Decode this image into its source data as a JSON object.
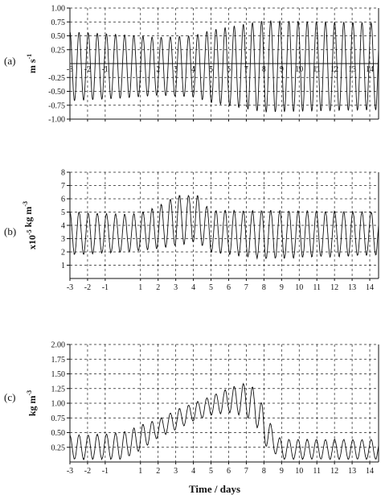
{
  "x_axis_label": "Time / days",
  "chart_data": [
    {
      "type": "line",
      "panel_label": "(a)",
      "ylabel_main": "m s",
      "ylabel_sup": "-1",
      "ylim": [
        -1.0,
        1.0
      ],
      "yticks": [
        -1.0,
        -0.75,
        -0.5,
        -0.25,
        0.25,
        0.5,
        0.75,
        1.0
      ],
      "ytick_labels": [
        "-1.00",
        "-0.75",
        "-0.50",
        "-0.25",
        "0.25",
        "0.50",
        "0.75",
        "1.00"
      ],
      "xlim": [
        -3,
        14.5
      ],
      "xticks": [
        -3,
        -2,
        -1,
        1,
        2,
        3,
        4,
        5,
        6,
        7,
        8,
        9,
        10,
        11,
        12,
        13,
        14
      ],
      "xtick_labels": [
        "-3",
        "-2",
        "-1",
        "1",
        "2",
        "3",
        "4",
        "5",
        "6",
        "7",
        "8",
        "9",
        "10",
        "11",
        "12",
        "13",
        "14"
      ],
      "xtick_labels_on_zero_line": true,
      "zero_line": true,
      "grid": true,
      "series": [
        {
          "period_days": 0.5175,
          "envelope_x": [
            -3,
            0,
            2,
            4,
            5,
            8,
            14.5
          ],
          "envelope_amplitude": [
            0.62,
            0.57,
            0.52,
            0.55,
            0.65,
            0.82,
            0.78
          ],
          "mean": -0.05
        }
      ]
    },
    {
      "type": "line",
      "panel_label": "(b)",
      "ylabel_prefix": "x10",
      "ylabel_exp1": "-5",
      "ylabel_main": " kg m",
      "ylabel_exp2": "-3",
      "ylim": [
        0,
        8
      ],
      "yticks": [
        1,
        2,
        3,
        4,
        5,
        6,
        7,
        8
      ],
      "ytick_labels": [
        "1",
        "2",
        "3",
        "4",
        "5",
        "6",
        "7",
        "8"
      ],
      "xlim": [
        -3,
        14.5
      ],
      "xticks": [
        -3,
        -2,
        -1,
        1,
        2,
        3,
        4,
        5,
        6,
        7,
        8,
        9,
        10,
        11,
        12,
        13,
        14
      ],
      "xtick_labels": [
        "-3",
        "-2",
        "-1",
        "1",
        "2",
        "3",
        "4",
        "5",
        "6",
        "7",
        "8",
        "9",
        "10",
        "11",
        "12",
        "13",
        "14"
      ],
      "grid": true,
      "series": [
        {
          "period_days": 0.5175,
          "envelope_x": [
            -3,
            0,
            1,
            2,
            3,
            4.2,
            5,
            8,
            14.5
          ],
          "low_env": [
            1.8,
            2.0,
            2.1,
            2.3,
            2.5,
            2.8,
            2.0,
            1.5,
            1.8
          ],
          "high_env": [
            5.0,
            4.8,
            4.9,
            5.4,
            6.2,
            6.3,
            5.1,
            5.1,
            5.0
          ]
        }
      ]
    },
    {
      "type": "line",
      "panel_label": "(c)",
      "ylabel_main": "kg m",
      "ylabel_sup": "-3",
      "ylim": [
        0,
        2.0
      ],
      "yticks": [
        0.25,
        0.5,
        0.75,
        1.0,
        1.25,
        1.5,
        1.75,
        2.0
      ],
      "ytick_labels": [
        "0.25",
        "0.50",
        "0.75",
        "1.00",
        "1.25",
        "1.50",
        "1.75",
        "2.00"
      ],
      "xlim": [
        -3,
        14.5
      ],
      "xticks": [
        -3,
        -2,
        -1,
        1,
        2,
        3,
        4,
        5,
        6,
        7,
        8,
        9,
        10,
        11,
        12,
        13,
        14
      ],
      "xtick_labels": [
        "-3",
        "-2",
        "-1",
        "1",
        "2",
        "3",
        "4",
        "5",
        "6",
        "7",
        "8",
        "9",
        "10",
        "11",
        "12",
        "13",
        "14"
      ],
      "grid": true,
      "series": [
        {
          "period_days": 0.5175,
          "envelope_x": [
            -3,
            -1,
            0,
            1,
            2,
            3,
            4,
            5,
            6,
            7,
            7.6,
            8.0,
            8.6,
            9,
            14.5
          ],
          "low_env": [
            0.05,
            0.05,
            0.05,
            0.2,
            0.42,
            0.55,
            0.7,
            0.8,
            0.85,
            0.78,
            0.6,
            0.3,
            0.15,
            0.05,
            0.05
          ],
          "high_env": [
            0.45,
            0.47,
            0.5,
            0.62,
            0.72,
            0.88,
            1.0,
            1.12,
            1.25,
            1.35,
            1.22,
            0.9,
            0.5,
            0.38,
            0.38
          ]
        }
      ]
    }
  ]
}
